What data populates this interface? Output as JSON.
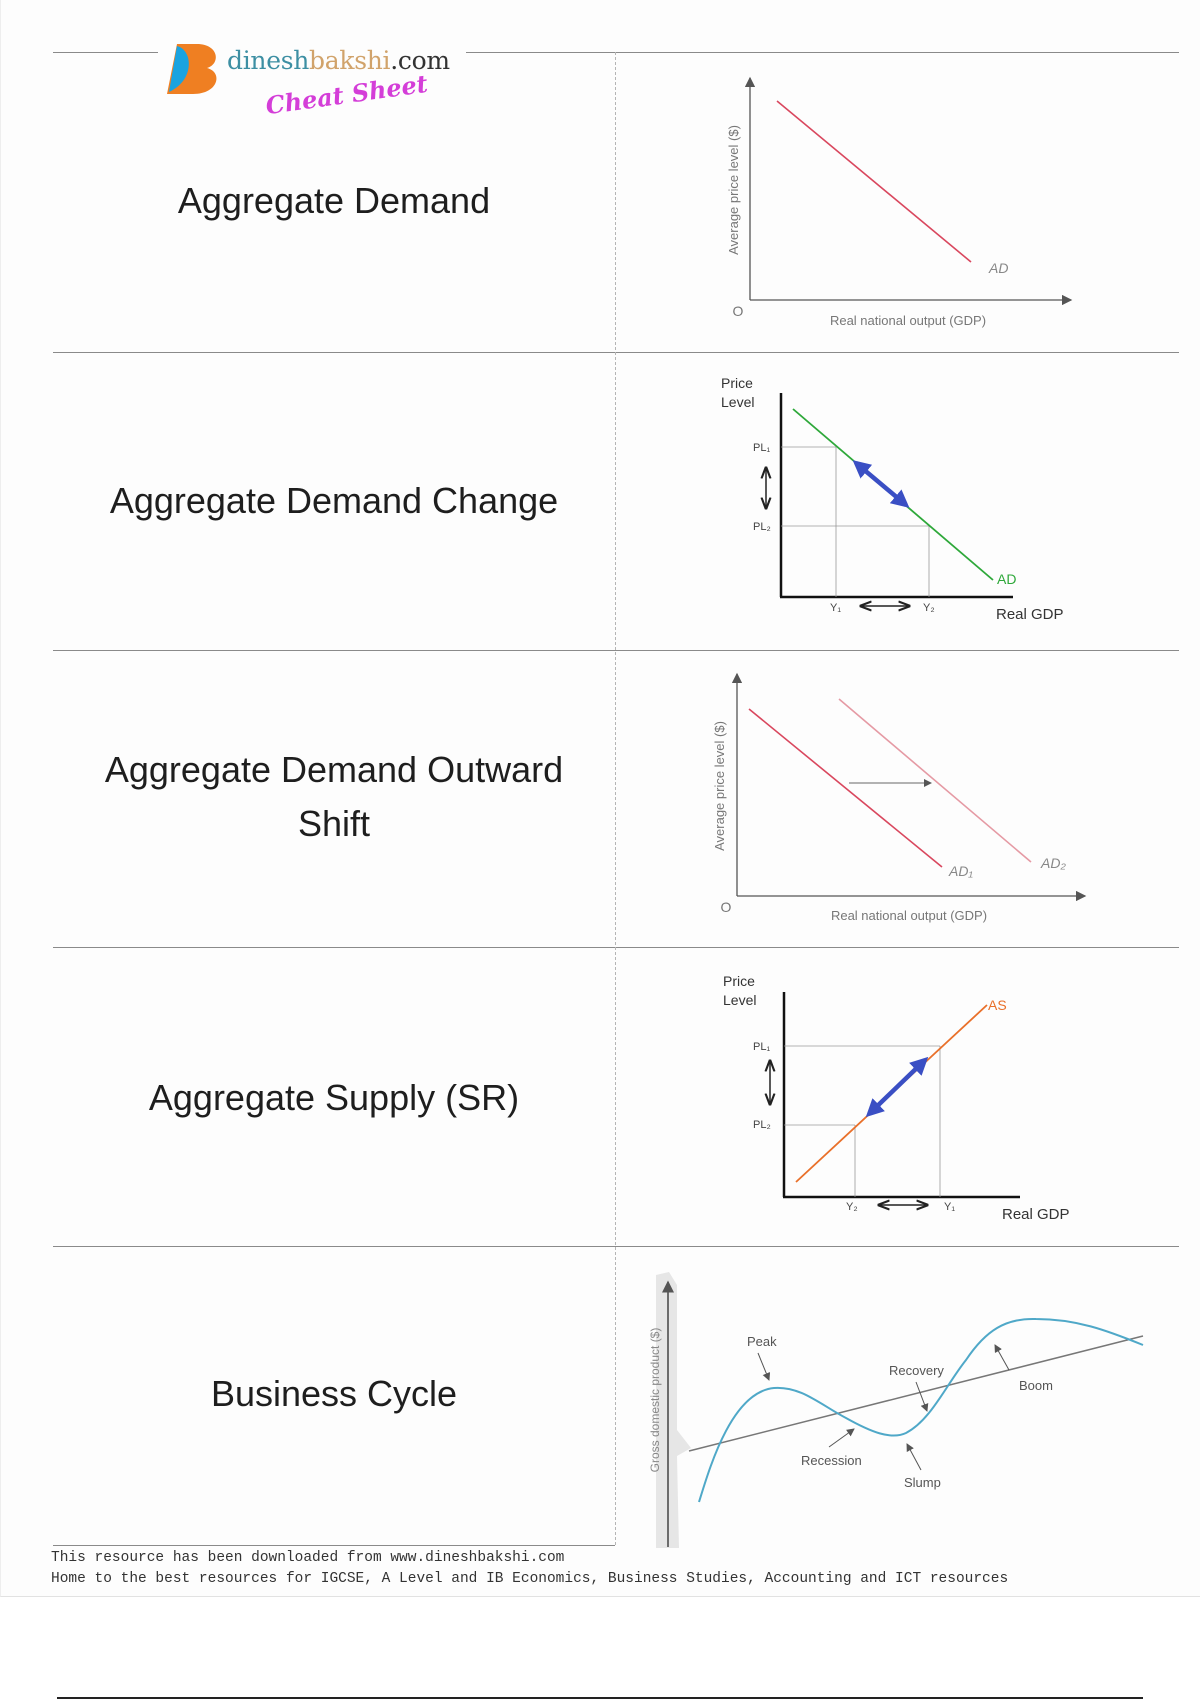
{
  "logo": {
    "part1": "dinesh",
    "part2": "bakshi",
    "part3": ".com",
    "tagline": "Cheat Sheet"
  },
  "rows": [
    {
      "title": "Aggregate Demand"
    },
    {
      "title": "Aggregate Demand Change"
    },
    {
      "title_line1": "Aggregate Demand Outward",
      "title_line2": "Shift"
    },
    {
      "title": "Aggregate Supply (SR)"
    },
    {
      "title": "Business Cycle"
    }
  ],
  "charts": {
    "ad": {
      "ylabel": "Average price level ($)",
      "xlabel": "Real national output (GDP)",
      "origin": "O",
      "curve": "AD"
    },
    "ad_change": {
      "ylabel1": "Price",
      "ylabel2": "Level",
      "pl1": "PL₁",
      "pl2": "PL₂",
      "y1": "Y₁",
      "y2": "Y₂",
      "curve": "AD",
      "xlabel": "Real GDP"
    },
    "ad_shift": {
      "ylabel": "Average price level ($)",
      "xlabel": "Real national output (GDP)",
      "origin": "O",
      "curve1": "AD₁",
      "curve2": "AD₂"
    },
    "as": {
      "ylabel1": "Price",
      "ylabel2": "Level",
      "pl1": "PL₁",
      "pl2": "PL₂",
      "y1": "Y₁",
      "y2": "Y₂",
      "curve": "AS",
      "xlabel": "Real GDP"
    },
    "cycle": {
      "ylabel": "Gross domestic product ($)",
      "labels": {
        "peak": "Peak",
        "recovery": "Recovery",
        "boom": "Boom",
        "recession": "Recession",
        "slump": "Slump"
      }
    }
  },
  "colors": {
    "ad": "#d9475e",
    "ad_change": "#2ea83a",
    "as": "#e9702a",
    "arrow": "#3a4fc4",
    "cycle": "#4fa8c8"
  },
  "footer": {
    "line1": "This resource has been downloaded from www.dineshbakshi.com",
    "line2": "Home to the best resources for IGCSE, A Level and IB Economics, Business Studies, Accounting and ICT resources"
  }
}
